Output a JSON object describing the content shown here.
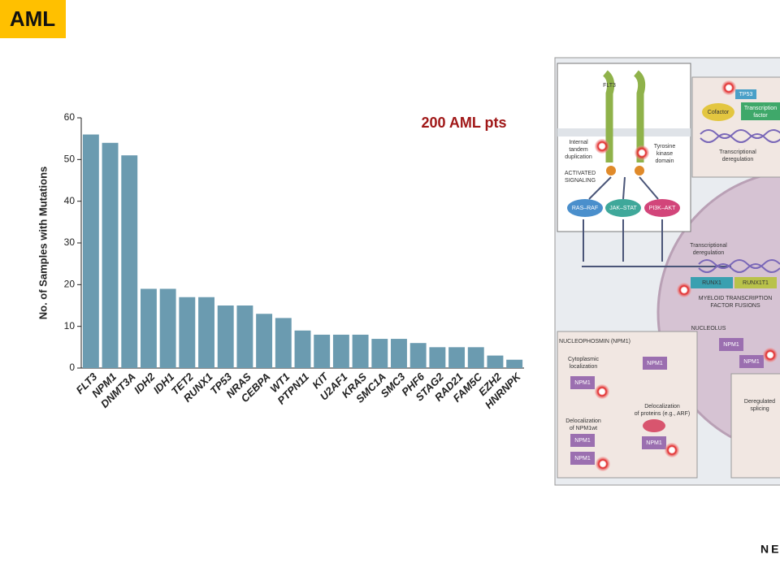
{
  "slide_title": "AML",
  "chart_data": {
    "type": "bar",
    "annotation": "200 AML pts",
    "y_label": "No. of Samples with Mutations",
    "categories": [
      "FLT3",
      "NPM1",
      "DNMT3A",
      "IDH2",
      "IDH1",
      "TET2",
      "RUNX1",
      "TP53",
      "NRAS",
      "CEBPA",
      "WT1",
      "PTPN11",
      "KIT",
      "U2AF1",
      "KRAS",
      "SMC1A",
      "SMC3",
      "PHF6",
      "STAG2",
      "RAD21",
      "FAM5C",
      "EZH2",
      "HNRNPK"
    ],
    "values": [
      56,
      54,
      51,
      19,
      19,
      17,
      17,
      15,
      15,
      13,
      12,
      9,
      8,
      8,
      8,
      7,
      7,
      6,
      5,
      5,
      5,
      3,
      2
    ],
    "color": "#6b9bb0",
    "ylim": [
      0,
      60
    ],
    "yticks": [
      0,
      10,
      20,
      30,
      40,
      50,
      60
    ],
    "grid": false
  },
  "diagram": {
    "labels": [
      "FLT3",
      "Internal",
      "tandem",
      "duplication",
      "Tyrosine",
      "kinase",
      "domain",
      "ACTIVATED",
      "SIGNALING",
      "RAS–RAF",
      "JAK–STAT",
      "PI3K–AKT",
      "TP53",
      "Cofactor",
      "Transcription",
      "factor",
      "Transcriptional",
      "deregulation",
      "Transcriptional",
      "deregulation",
      "RUNX1",
      "RUNX1T1",
      "MYELOID TRANSCRIPTION",
      "FACTOR FUSIONS",
      "NUCLEOLUS",
      "NUCLEOPHOSMIN (NPM1)",
      "Cytoplasmic",
      "localization",
      "NPM1",
      "NPM1",
      "NPM1",
      "NPM1",
      "Delocalization",
      "of proteins (e.g., ARF)",
      "Delocalization",
      "of NPM1wt",
      "NPM1",
      "NPM1",
      "NPM1",
      "Deregulated",
      "splicing"
    ]
  },
  "footer": "NE"
}
